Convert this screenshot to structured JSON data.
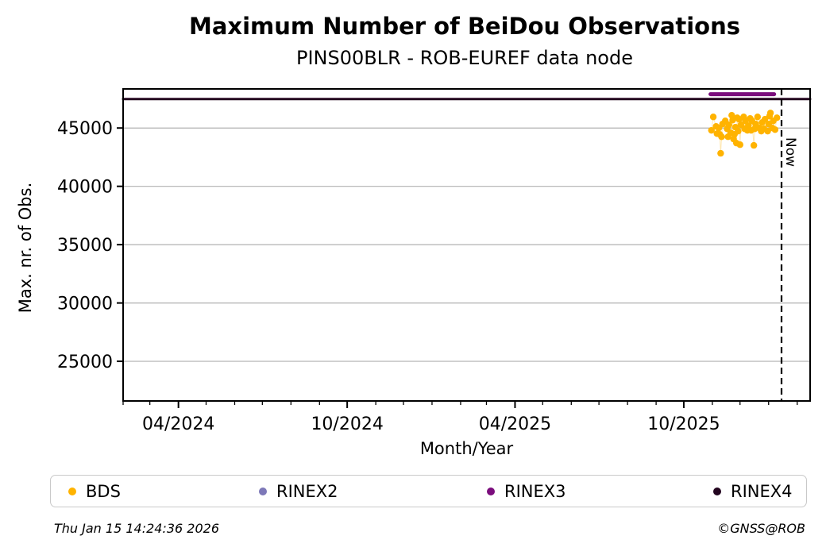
{
  "header": {
    "title": "Maximum Number of BeiDou Observations",
    "subtitle": "PINS00BLR - ROB-EUREF data node"
  },
  "footer": {
    "timestamp": "Thu Jan 15 14:24:36 2026",
    "credit": "©GNSS@ROB"
  },
  "legend": {
    "items": [
      {
        "label": "BDS",
        "color": "#FFB300"
      },
      {
        "label": "RINEX2",
        "color": "#7D78B8"
      },
      {
        "label": "RINEX3",
        "color": "#7B0D7D"
      },
      {
        "label": "RINEX4",
        "color": "#23051F"
      }
    ]
  },
  "chart_data": {
    "type": "scatter",
    "title": "Maximum Number of BeiDou Observations",
    "subtitle": "PINS00BLR - ROB-EUREF data node",
    "xlabel": "Month/Year",
    "ylabel": "Max. nr. of Obs.",
    "x_domain": [
      "2024-02-01",
      "2026-02-15"
    ],
    "ylim": [
      21600,
      48350
    ],
    "y_ticks": [
      25000,
      30000,
      35000,
      40000,
      45000
    ],
    "x_major_ticks": [
      {
        "date": "2024-04-01",
        "label": "04/2024"
      },
      {
        "date": "2024-10-01",
        "label": "10/2024"
      },
      {
        "date": "2025-04-01",
        "label": "04/2025"
      },
      {
        "date": "2025-10-01",
        "label": "10/2025"
      }
    ],
    "x_minor_interval_months": 1,
    "grid": "horizontal",
    "grid_color": "#b0b0b0",
    "now_line": {
      "date": "2026-01-15",
      "label": "Now"
    },
    "series": [
      {
        "name": "BDS",
        "type": "scatter",
        "color": "#FFB300",
        "marker_radius": 4.2,
        "points": [
          [
            "2025-10-31",
            44800
          ],
          [
            "2025-11-02",
            45950
          ],
          [
            "2025-11-05",
            45140
          ],
          [
            "2025-11-06",
            44520
          ],
          [
            "2025-11-08",
            45000
          ],
          [
            "2025-11-09",
            44460
          ],
          [
            "2025-11-10",
            42830
          ],
          [
            "2025-11-11",
            44250
          ],
          [
            "2025-11-12",
            45340
          ],
          [
            "2025-11-15",
            45610
          ],
          [
            "2025-11-17",
            44930
          ],
          [
            "2025-11-18",
            44250
          ],
          [
            "2025-11-19",
            45270
          ],
          [
            "2025-11-21",
            44590
          ],
          [
            "2025-11-22",
            46090
          ],
          [
            "2025-11-23",
            45680
          ],
          [
            "2025-11-24",
            44050
          ],
          [
            "2025-11-25",
            44460
          ],
          [
            "2025-11-26",
            45070
          ],
          [
            "2025-11-27",
            43710
          ],
          [
            "2025-11-28",
            45880
          ],
          [
            "2025-11-29",
            44730
          ],
          [
            "2025-11-30",
            45750
          ],
          [
            "2025-12-01",
            43570
          ],
          [
            "2025-12-02",
            45270
          ],
          [
            "2025-12-05",
            45950
          ],
          [
            "2025-12-06",
            44930
          ],
          [
            "2025-12-07",
            45610
          ],
          [
            "2025-12-09",
            44800
          ],
          [
            "2025-12-10",
            45200
          ],
          [
            "2025-12-12",
            45820
          ],
          [
            "2025-12-13",
            44800
          ],
          [
            "2025-12-14",
            45610
          ],
          [
            "2025-12-16",
            43510
          ],
          [
            "2025-12-17",
            44930
          ],
          [
            "2025-12-18",
            45340
          ],
          [
            "2025-12-20",
            45950
          ],
          [
            "2025-12-22",
            45000
          ],
          [
            "2025-12-24",
            44730
          ],
          [
            "2025-12-25",
            45480
          ],
          [
            "2025-12-27",
            44930
          ],
          [
            "2025-12-28",
            45750
          ],
          [
            "2025-12-31",
            44730
          ],
          [
            "2026-01-01",
            45340
          ],
          [
            "2026-01-02",
            46020
          ],
          [
            "2026-01-03",
            46290
          ],
          [
            "2026-01-05",
            45000
          ],
          [
            "2026-01-06",
            45610
          ],
          [
            "2026-01-08",
            44860
          ],
          [
            "2026-01-10",
            45880
          ]
        ]
      },
      {
        "name": "RINEX2",
        "type": "scatter",
        "color": "#7D78B8",
        "marker_radius": 4.2,
        "points": []
      },
      {
        "name": "RINEX3",
        "type": "line",
        "color": "#7B0D7D",
        "stroke_width": 5,
        "points": [
          [
            "2025-10-30",
            47900
          ],
          [
            "2026-01-07",
            47900
          ]
        ]
      },
      {
        "name": "RINEX4",
        "type": "line",
        "color": "#23051F",
        "stroke_width": 3,
        "points": [
          [
            "2024-02-01",
            47480
          ],
          [
            "2026-02-15",
            47480
          ]
        ]
      }
    ],
    "legend_position": "bottom"
  }
}
